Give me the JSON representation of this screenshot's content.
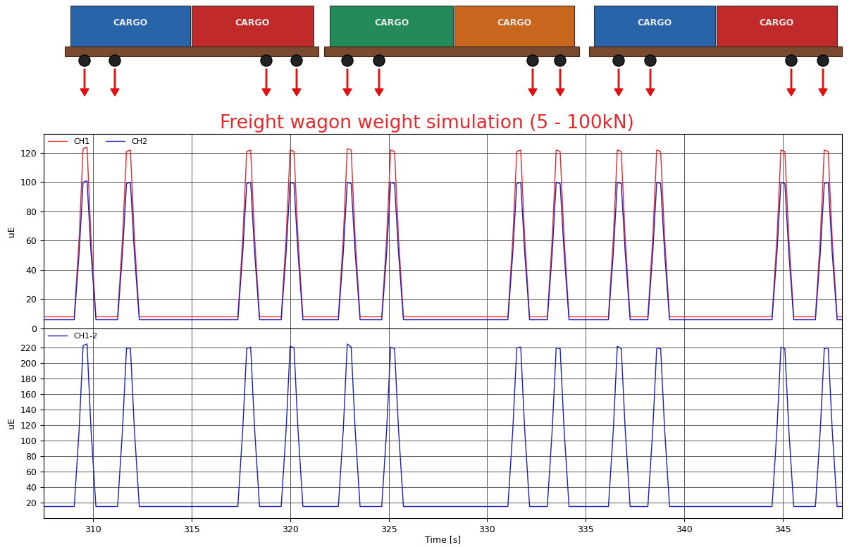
{
  "illustration": {
    "container_labels": [
      "CARGO",
      "CARGO",
      "CARGO",
      "CARGO",
      "CARGO",
      "CARGO"
    ]
  },
  "chart_data": [
    {
      "type": "line",
      "title": "Freight wagon weight simulation (5 - 100kN)",
      "x": [
        307.5,
        309.05,
        309.3,
        309.5,
        309.7,
        309.9,
        310.15,
        311.25,
        311.5,
        311.7,
        311.9,
        312.1,
        312.35,
        317.35,
        317.6,
        317.8,
        318.0,
        318.2,
        318.45,
        319.55,
        319.8,
        320.0,
        320.2,
        320.4,
        320.65,
        322.45,
        322.7,
        322.9,
        323.1,
        323.3,
        323.55,
        324.65,
        324.9,
        325.1,
        325.3,
        325.5,
        325.75,
        331.05,
        331.3,
        331.5,
        331.7,
        331.9,
        332.15,
        333.05,
        333.3,
        333.5,
        333.7,
        333.9,
        334.15,
        336.15,
        336.4,
        336.6,
        336.8,
        337.0,
        337.25,
        338.15,
        338.4,
        338.6,
        338.8,
        339.0,
        339.25,
        344.45,
        344.7,
        344.9,
        345.1,
        345.3,
        345.55,
        346.65,
        346.9,
        347.1,
        347.3,
        347.5,
        347.75,
        348.0
      ],
      "series": [
        {
          "name": "CH1",
          "color": "#e8282b",
          "values": [
            8,
            8,
            62,
            123,
            124,
            62,
            8,
            8,
            62,
            121,
            122,
            62,
            8,
            8,
            62,
            121,
            122,
            62,
            8,
            8,
            62,
            122,
            121,
            62,
            8,
            8,
            62,
            123,
            122,
            62,
            8,
            8,
            62,
            122,
            121,
            62,
            8,
            8,
            62,
            121,
            122,
            62,
            8,
            8,
            62,
            122,
            121,
            62,
            8,
            8,
            62,
            122,
            121,
            62,
            8,
            8,
            62,
            122,
            121,
            62,
            8,
            8,
            62,
            122,
            121,
            62,
            8,
            8,
            62,
            122,
            121,
            62,
            8,
            8
          ]
        },
        {
          "name": "CH2",
          "color": "#1f1fbf",
          "values": [
            6,
            6,
            52,
            100,
            101,
            52,
            6,
            6,
            52,
            99,
            100,
            52,
            6,
            6,
            52,
            99,
            100,
            52,
            6,
            6,
            52,
            100,
            99,
            52,
            6,
            6,
            52,
            100,
            99,
            52,
            6,
            6,
            52,
            100,
            99,
            52,
            6,
            6,
            52,
            99,
            100,
            52,
            6,
            6,
            52,
            100,
            99,
            52,
            6,
            6,
            52,
            100,
            99,
            52,
            6,
            6,
            52,
            100,
            99,
            52,
            6,
            6,
            52,
            100,
            99,
            52,
            6,
            6,
            52,
            99,
            100,
            52,
            6,
            6
          ]
        }
      ],
      "y_label": "uE",
      "xlim": [
        307.5,
        348.0
      ],
      "xticks": [
        310,
        315,
        320,
        325,
        330,
        335,
        340,
        345
      ],
      "ylim": [
        0,
        133
      ],
      "yticks": [
        0,
        20,
        40,
        60,
        80,
        100,
        120
      ],
      "grid": true,
      "legend": "upper left",
      "tick_labels": "y"
    },
    {
      "type": "line",
      "x": [
        307.5,
        309.05,
        309.3,
        309.5,
        309.7,
        309.9,
        310.15,
        311.25,
        311.5,
        311.7,
        311.9,
        312.1,
        312.35,
        317.35,
        317.6,
        317.8,
        318.0,
        318.2,
        318.45,
        319.55,
        319.8,
        320.0,
        320.2,
        320.4,
        320.65,
        322.45,
        322.7,
        322.9,
        323.1,
        323.3,
        323.55,
        324.65,
        324.9,
        325.1,
        325.3,
        325.5,
        325.75,
        331.05,
        331.3,
        331.5,
        331.7,
        331.9,
        332.15,
        333.05,
        333.3,
        333.5,
        333.7,
        333.9,
        334.15,
        336.15,
        336.4,
        336.6,
        336.8,
        337.0,
        337.25,
        338.15,
        338.4,
        338.6,
        338.8,
        339.0,
        339.25,
        344.45,
        344.7,
        344.9,
        345.1,
        345.3,
        345.55,
        346.65,
        346.9,
        347.1,
        347.3,
        347.5,
        347.75,
        348.0
      ],
      "series": [
        {
          "name": "CH1-2",
          "color": "#1f1fbf",
          "values": [
            15,
            15,
            115,
            223,
            225,
            115,
            15,
            15,
            115,
            219,
            220,
            115,
            15,
            15,
            115,
            219,
            221,
            115,
            15,
            15,
            115,
            222,
            220,
            115,
            15,
            15,
            115,
            225,
            221,
            115,
            15,
            15,
            115,
            221,
            219,
            115,
            15,
            15,
            115,
            220,
            221,
            115,
            15,
            15,
            115,
            220,
            219,
            115,
            15,
            15,
            115,
            222,
            219,
            115,
            15,
            15,
            115,
            220,
            219,
            115,
            15,
            15,
            115,
            221,
            219,
            115,
            15,
            15,
            115,
            219,
            220,
            115,
            15,
            15
          ]
        }
      ],
      "x_label": "Time [s]",
      "y_label": "uE",
      "xlim": [
        307.5,
        348.0
      ],
      "xticks": [
        310,
        315,
        320,
        325,
        330,
        335,
        340,
        345
      ],
      "ylim": [
        0,
        245
      ],
      "yticks": [
        20,
        40,
        60,
        80,
        100,
        120,
        140,
        160,
        180,
        200,
        220
      ],
      "grid": true,
      "legend": "upper left"
    }
  ]
}
